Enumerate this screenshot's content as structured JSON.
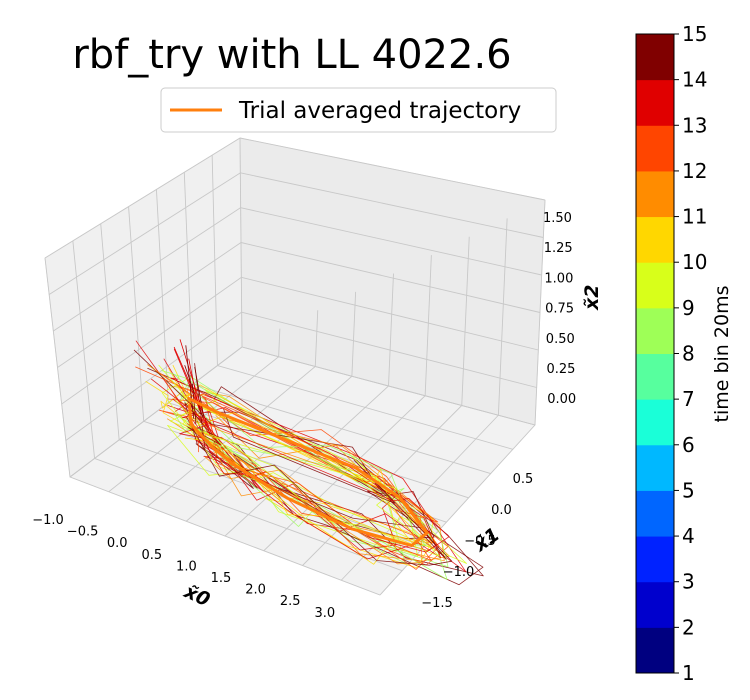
{
  "chart_data": {
    "type": "line",
    "projection": "3d",
    "title": "rbf_try with LL 4022.6",
    "legend": {
      "entries": [
        "Trial averaged trajectory"
      ],
      "placement": "top-center",
      "color": "#ff7f0e"
    },
    "axes": {
      "x": {
        "label": "x̃0",
        "ticks": [
          "−1.0",
          "−0.5",
          "0.0",
          "0.5",
          "1.0",
          "1.5",
          "2.0",
          "2.5",
          "3.0"
        ],
        "range": [
          -1.1,
          3.2
        ]
      },
      "y": {
        "label": "x̃1",
        "ticks": [
          "0.5",
          "0.0",
          "−0.5",
          "−1.0",
          "−1.5"
        ],
        "range": [
          -1.7,
          0.8
        ]
      },
      "z": {
        "label": "x̃2",
        "ticks": [
          "1.50",
          "1.25",
          "1.00",
          "0.75",
          "0.50",
          "0.25",
          "0.00"
        ],
        "range": [
          -0.15,
          1.65
        ]
      }
    },
    "grid": true,
    "colorbar": {
      "label": "time bin 20ms",
      "ticks": [
        "1",
        "2",
        "3",
        "4",
        "5",
        "6",
        "7",
        "8",
        "9",
        "10",
        "11",
        "12",
        "13",
        "14",
        "15"
      ],
      "colors": [
        "#000080",
        "#0000cd",
        "#0022ff",
        "#0066ff",
        "#00b8ff",
        "#1affd8",
        "#57ff9e",
        "#9eff57",
        "#d8ff1a",
        "#ffd700",
        "#ff8c00",
        "#ff4500",
        "#e00000",
        "#800000"
      ]
    },
    "series": [
      {
        "name": "Trial averaged trajectory",
        "x": [
          0.2,
          0.5,
          2.4,
          2.9,
          3.0,
          2.5,
          1.5,
          0.7,
          0.15,
          0.0,
          -0.15,
          -0.05
        ],
        "y": [
          0.6,
          0.5,
          0.45,
          0.35,
          0.1,
          -0.15,
          -0.3,
          -0.2,
          -0.05,
          0.1,
          0.25,
          0.35
        ],
        "z": [
          0.2,
          0.25,
          0.25,
          0.15,
          0.0,
          -0.05,
          0.0,
          0.0,
          0.05,
          0.05,
          0.15,
          0.35
        ]
      }
    ]
  }
}
